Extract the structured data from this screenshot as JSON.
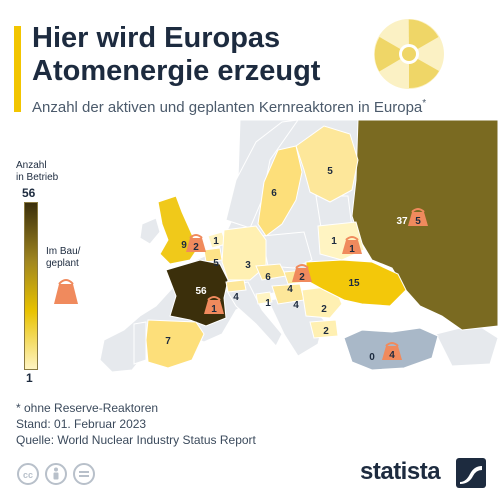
{
  "header": {
    "title_line1": "Hier wird Europas",
    "title_line2": "Atomenergie erzeugt",
    "subtitle": "Anzahl der aktiven und geplanten Kernreaktoren in Europa",
    "subtitle_mark": "*",
    "accent_color": "#f2c500",
    "icon": "radiation-icon"
  },
  "legend": {
    "title_line1": "Anzahl",
    "title_line2": "in Betrieb",
    "max_label": "56",
    "min_label": "1",
    "construction_line1": "Im Bau/",
    "construction_line2": "geplant",
    "construction_icon": "cooling-tower-icon",
    "color_high": "#3b2f0b",
    "color_mid": "#e8c200",
    "color_low": "#fff4c2"
  },
  "map": {
    "operating": [
      {
        "country": "Frankreich",
        "value": "56"
      },
      {
        "country": "Russland",
        "value": "37"
      },
      {
        "country": "Ukraine",
        "value": "15"
      },
      {
        "country": "Vereinigtes Königreich",
        "value": "9"
      },
      {
        "country": "Spanien",
        "value": "7"
      },
      {
        "country": "Schweden",
        "value": "6"
      },
      {
        "country": "Tschechien",
        "value": "6"
      },
      {
        "country": "Finnland",
        "value": "5"
      },
      {
        "country": "Belgien",
        "value": "5"
      },
      {
        "country": "Schweiz",
        "value": "4"
      },
      {
        "country": "Slowakei",
        "value": "4"
      },
      {
        "country": "Ungarn",
        "value": "4"
      },
      {
        "country": "Deutschland",
        "value": "3"
      },
      {
        "country": "Rumänien",
        "value": "2"
      },
      {
        "country": "Bulgarien",
        "value": "2"
      },
      {
        "country": "Niederlande",
        "value": "1"
      },
      {
        "country": "Slowenien",
        "value": "1"
      },
      {
        "country": "Belarus",
        "value": "1"
      },
      {
        "country": "Türkei",
        "value": "0"
      }
    ],
    "construction": [
      {
        "country": "Vereinigtes Königreich",
        "value": "2"
      },
      {
        "country": "Frankreich",
        "value": "1"
      },
      {
        "country": "Russland",
        "value": "5"
      },
      {
        "country": "Slowakei",
        "value": "2"
      },
      {
        "country": "Belarus",
        "value": "1"
      },
      {
        "country": "Türkei",
        "value": "4"
      }
    ]
  },
  "footer": {
    "note": "* ohne Reserve-Reaktoren",
    "date": "Stand: 01. Februar 2023",
    "source": "Quelle: World Nuclear Industry Status Report",
    "brand": "statista",
    "license_icons": [
      "cc-icon",
      "person-icon",
      "equals-icon"
    ]
  }
}
